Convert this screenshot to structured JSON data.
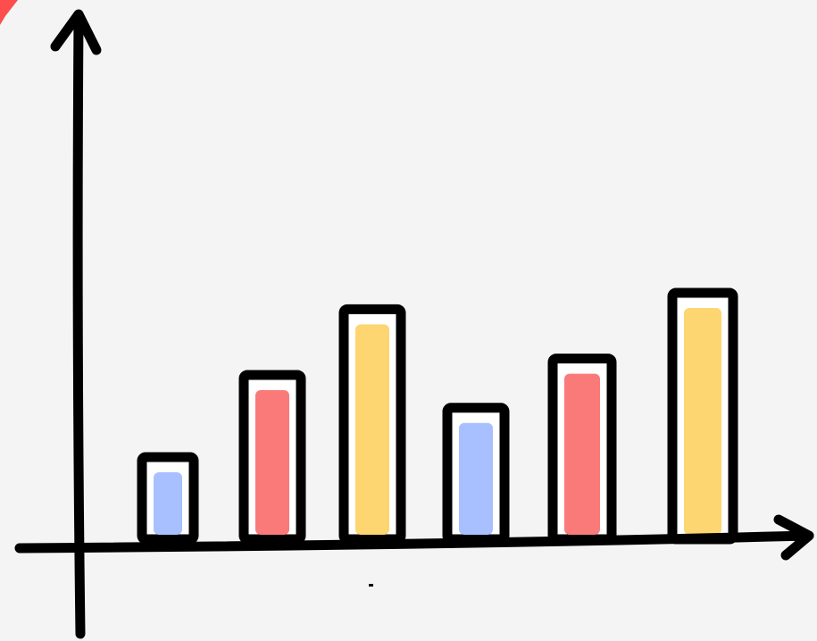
{
  "chart_data": {
    "type": "bar",
    "title": "",
    "xlabel": "",
    "ylabel": "",
    "categories": [
      "",
      "",
      "",
      "",
      "",
      ""
    ],
    "values": [
      1.0,
      2.0,
      2.8,
      1.6,
      2.2,
      3.0
    ],
    "ylim": [
      0,
      6
    ],
    "grid": false,
    "legend": "none",
    "bar_colors": [
      "#a8c0ff",
      "#fa7a7a",
      "#fdd571",
      "#a8c0ff",
      "#fa7a7a",
      "#fdd571"
    ],
    "corner_accent_color": "#ff3b3b",
    "axis_color": "#000000",
    "background": "#f4f4f4"
  }
}
